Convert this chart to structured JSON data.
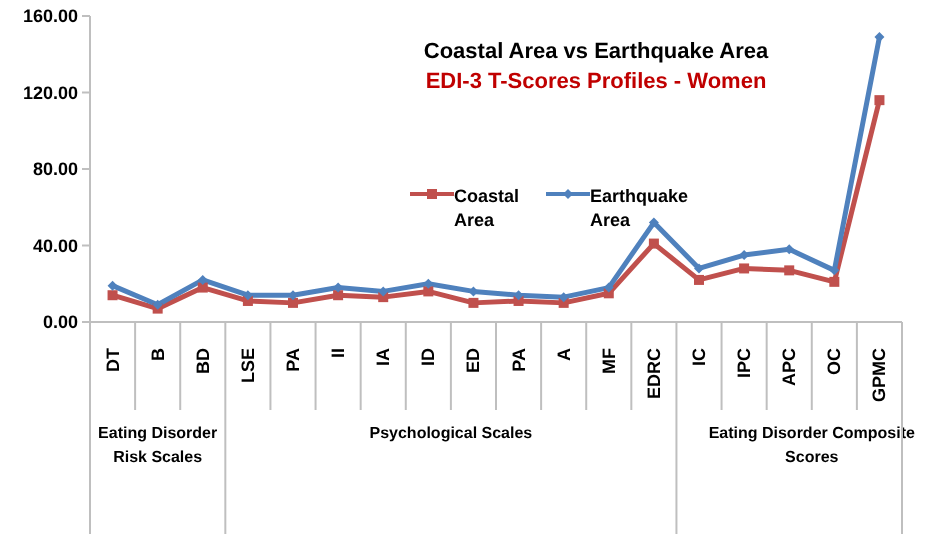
{
  "chart_data": {
    "type": "line",
    "title": "Coastal Area vs Earthquake Area",
    "subtitle": "EDI-3 T-Scores Profiles - Women",
    "categories": [
      "DT",
      "B",
      "BD",
      "LSE",
      "PA",
      "II",
      "IA",
      "ID",
      "ED",
      "PA",
      "A",
      "MF",
      "EDRC",
      "IC",
      "IPC",
      "APC",
      "OC",
      "GPMC"
    ],
    "series": [
      {
        "name": "Coastal Area",
        "color": "#c0504d",
        "marker": "square",
        "values": [
          14,
          7,
          18,
          11,
          10,
          14,
          13,
          16,
          10,
          11,
          10,
          15,
          41,
          22,
          28,
          27,
          21,
          116
        ]
      },
      {
        "name": "Earthquake Area",
        "color": "#4f81bd",
        "marker": "diamond",
        "values": [
          19,
          9,
          22,
          14,
          14,
          18,
          16,
          20,
          16,
          14,
          13,
          18,
          52,
          28,
          35,
          38,
          27,
          149
        ]
      }
    ],
    "ylim": [
      0,
      160
    ],
    "yticks": [
      {
        "value": 0,
        "label": "0.00"
      },
      {
        "value": 40,
        "label": "40.00"
      },
      {
        "value": 80,
        "label": "80.00"
      },
      {
        "value": 120,
        "label": "120.00"
      },
      {
        "value": 160,
        "label": "160.00"
      }
    ],
    "annotations": [
      "Eating Disorder Risk Scales",
      "Psychological Scales",
      "Eating Disorder Composite Scores"
    ],
    "legend": "center",
    "grid": false
  }
}
